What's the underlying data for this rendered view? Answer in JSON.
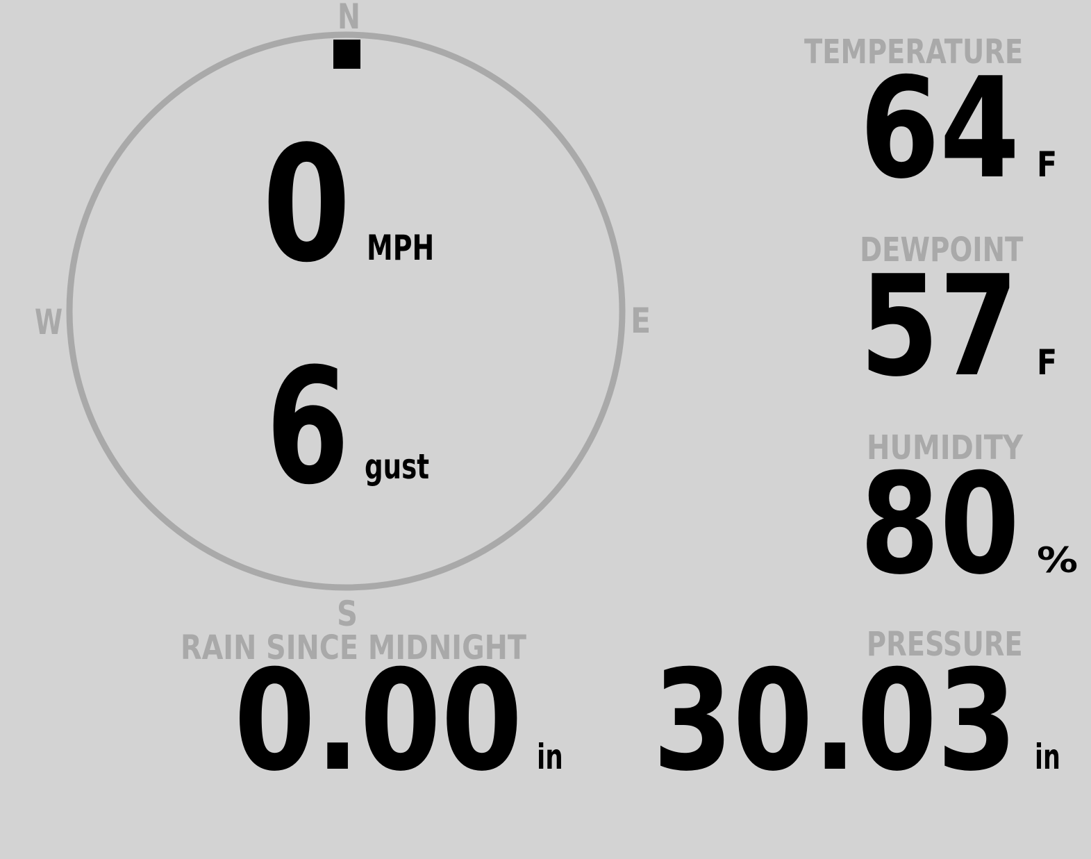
{
  "colors": {
    "background": "#d3d3d3",
    "label": "#a9a9a9",
    "value": "#000000"
  },
  "compass": {
    "n": "N",
    "e": "E",
    "s": "S",
    "w": "W"
  },
  "wind": {
    "speed": "0",
    "speed_unit": "MPH",
    "gust": "6",
    "gust_label": "gust",
    "direction_deg": 0
  },
  "temperature": {
    "label": "TEMPERATURE",
    "value": "64",
    "unit": "F"
  },
  "dewpoint": {
    "label": "DEWPOINT",
    "value": "57",
    "unit": "F"
  },
  "humidity": {
    "label": "HUMIDITY",
    "value": "80",
    "unit": "%"
  },
  "rain": {
    "label": "RAIN SINCE MIDNIGHT",
    "value": "0.00",
    "unit": "in"
  },
  "pressure": {
    "label": "PRESSURE",
    "value": "30.03",
    "unit": "in"
  }
}
